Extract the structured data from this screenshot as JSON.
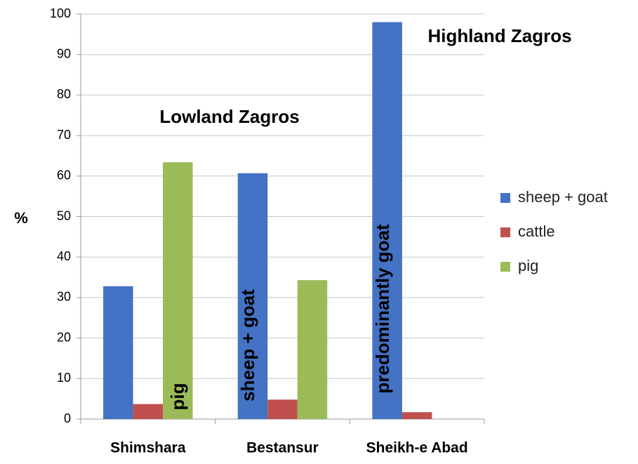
{
  "chart_data": {
    "type": "bar",
    "ylabel": "%",
    "categories": [
      "Shimshara",
      "Bestansur",
      "Sheikh-e Abad"
    ],
    "series": [
      {
        "name": "sheep + goat",
        "color": "#4472c4",
        "values": [
          32.8,
          60.7,
          98.0
        ]
      },
      {
        "name": "cattle",
        "color": "#c0504d",
        "values": [
          3.7,
          4.8,
          1.7
        ]
      },
      {
        "name": "pig",
        "color": "#9bbb59",
        "values": [
          63.4,
          34.3,
          null
        ]
      }
    ],
    "ylim": [
      0,
      100
    ],
    "yticks": [
      0,
      10,
      20,
      30,
      40,
      50,
      60,
      70,
      80,
      90,
      100
    ],
    "grid": true,
    "legend": "right",
    "annotations": [
      "Lowland Zagros",
      "Highland Zagros",
      "pig",
      "sheep + goat",
      "predominantly goat"
    ]
  }
}
